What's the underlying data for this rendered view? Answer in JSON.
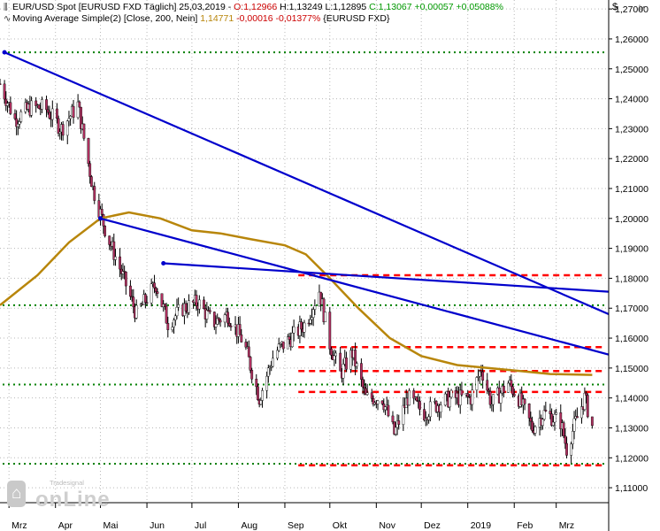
{
  "header": {
    "line1": {
      "instrument": "EUR/USD Spot [EURUSD FXD  Täglich] 25,03,2019 - ",
      "open": "O:1,12966",
      "high": " H:1,13249",
      "low": " L:1,12895",
      "close": " C:1,13067 +0,00057 +0,05088%"
    },
    "line2": {
      "indicator": "Moving Average Simple(2) [Close, 200, Nein] ",
      "value": "1,14771",
      "change": " -0,00016 -0,01377%",
      "source": " {EURUSD FXD}"
    }
  },
  "axis": {
    "currency": "$",
    "y_ticks": [
      "1,27000",
      "1,26000",
      "1,25000",
      "1,24000",
      "1,23000",
      "1,22000",
      "1,21000",
      "1,20000",
      "1,19000",
      "1,18000",
      "1,17000",
      "1,16000",
      "1,15000",
      "1,14000",
      "1,13000",
      "1,12000",
      "1,11000"
    ],
    "x_ticks": [
      "Mrz",
      "Apr",
      "Mai",
      "Jun",
      "Jul",
      "Aug",
      "Sep",
      "Okt",
      "Nov",
      "Dez",
      "2019",
      "Feb",
      "Mrz"
    ]
  },
  "logo": {
    "word": "onLine",
    "sub": "Tradesignal"
  },
  "colors": {
    "up_candle": "#ffffff",
    "down_candle": "#b03060",
    "wick": "#000000",
    "moving_average": "#b8860b",
    "trendline": "#0000cc",
    "resistance": "#ff0000",
    "support": "#008000",
    "grid": "#b8b8b8"
  },
  "chart_data": {
    "type": "candlestick",
    "instrument": "EUR/USD",
    "ylim": [
      1.105,
      1.273
    ],
    "x_range": [
      "2018-02-23",
      "2019-04-05"
    ],
    "series": [
      {
        "name": "Moving Average Simple(2) [Close, 200, Nein]",
        "type": "line",
        "points": [
          [
            "2018-02-23",
            1.171
          ],
          [
            "2018-03-20",
            1.181
          ],
          [
            "2018-04-10",
            1.192
          ],
          [
            "2018-05-01",
            1.2
          ],
          [
            "2018-05-20",
            1.202
          ],
          [
            "2018-06-10",
            1.2
          ],
          [
            "2018-07-01",
            1.196
          ],
          [
            "2018-07-20",
            1.195
          ],
          [
            "2018-08-10",
            1.193
          ],
          [
            "2018-09-01",
            1.191
          ],
          [
            "2018-09-15",
            1.188
          ],
          [
            "2018-10-01",
            1.18
          ],
          [
            "2018-10-20",
            1.17
          ],
          [
            "2018-11-10",
            1.16
          ],
          [
            "2018-12-01",
            1.154
          ],
          [
            "2018-12-25",
            1.151
          ],
          [
            "2019-01-15",
            1.15
          ],
          [
            "2019-02-05",
            1.149
          ],
          [
            "2019-02-25",
            1.148
          ],
          [
            "2019-03-25",
            1.1477
          ]
        ]
      },
      {
        "name": "Close",
        "type": "candles",
        "points": [
          [
            "2018-02-23",
            1.245
          ],
          [
            "2018-03-05",
            1.233
          ],
          [
            "2018-03-15",
            1.237
          ],
          [
            "2018-03-25",
            1.237
          ],
          [
            "2018-04-05",
            1.23
          ],
          [
            "2018-04-16",
            1.238
          ],
          [
            "2018-04-26",
            1.21
          ],
          [
            "2018-05-05",
            1.195
          ],
          [
            "2018-05-15",
            1.182
          ],
          [
            "2018-05-25",
            1.168
          ],
          [
            "2018-06-07",
            1.178
          ],
          [
            "2018-06-15",
            1.165
          ],
          [
            "2018-06-25",
            1.17
          ],
          [
            "2018-07-05",
            1.172
          ],
          [
            "2018-07-15",
            1.165
          ],
          [
            "2018-07-25",
            1.168
          ],
          [
            "2018-08-05",
            1.158
          ],
          [
            "2018-08-15",
            1.14
          ],
          [
            "2018-08-25",
            1.155
          ],
          [
            "2018-09-05",
            1.16
          ],
          [
            "2018-09-15",
            1.165
          ],
          [
            "2018-09-24",
            1.176
          ],
          [
            "2018-10-01",
            1.158
          ],
          [
            "2018-10-08",
            1.148
          ],
          [
            "2018-10-16",
            1.155
          ],
          [
            "2018-10-25",
            1.14
          ],
          [
            "2018-11-05",
            1.14
          ],
          [
            "2018-11-13",
            1.128
          ],
          [
            "2018-11-22",
            1.14
          ],
          [
            "2018-12-03",
            1.135
          ],
          [
            "2018-12-12",
            1.138
          ],
          [
            "2018-12-21",
            1.14
          ],
          [
            "2019-01-03",
            1.14
          ],
          [
            "2019-01-10",
            1.15
          ],
          [
            "2019-01-17",
            1.138
          ],
          [
            "2019-01-28",
            1.145
          ],
          [
            "2019-02-04",
            1.14
          ],
          [
            "2019-02-13",
            1.13
          ],
          [
            "2019-02-21",
            1.135
          ],
          [
            "2019-03-04",
            1.132
          ],
          [
            "2019-03-08",
            1.123
          ],
          [
            "2019-03-14",
            1.132
          ],
          [
            "2019-03-20",
            1.14
          ],
          [
            "2019-03-25",
            1.1307
          ]
        ]
      }
    ],
    "trendlines": [
      {
        "from": [
          "2018-02-26",
          1.2555
        ],
        "to": [
          "2019-04-05",
          1.168
        ]
      },
      {
        "from": [
          "2018-05-01",
          1.2
        ],
        "to": [
          "2019-04-05",
          1.1545
        ]
      },
      {
        "from": [
          "2018-06-12",
          1.185
        ],
        "to": [
          "2019-04-05",
          1.1755
        ]
      }
    ],
    "resistance_levels": [
      1.181,
      1.157,
      1.149,
      1.142,
      1.1175
    ],
    "support_levels": [
      1.2555,
      1.171,
      1.1445,
      1.118
    ]
  }
}
